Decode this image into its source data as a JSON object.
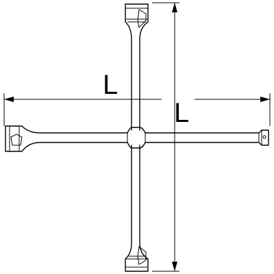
{
  "dimension_labels": {
    "horizontal": "L",
    "vertical": "L"
  },
  "colors": {
    "stroke": "#000000",
    "background": "#ffffff"
  }
}
